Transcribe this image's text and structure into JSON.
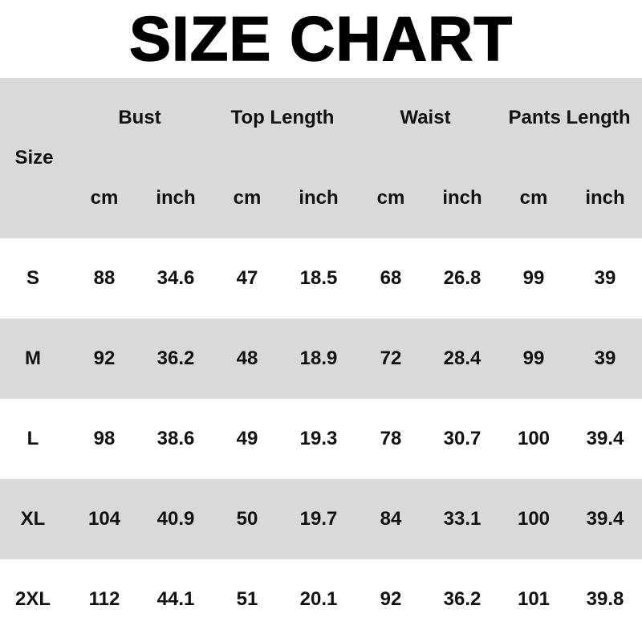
{
  "title": "SIZE CHART",
  "header": {
    "size_label": "Size",
    "groups": [
      "Bust",
      "Top Length",
      "Waist",
      "Pants Length"
    ],
    "units": [
      "cm",
      "inch",
      "cm",
      "inch",
      "cm",
      "inch",
      "cm",
      "inch"
    ]
  },
  "rows": [
    {
      "size": "S",
      "values": [
        "88",
        "34.6",
        "47",
        "18.5",
        "68",
        "26.8",
        "99",
        "39"
      ]
    },
    {
      "size": "M",
      "values": [
        "92",
        "36.2",
        "48",
        "18.9",
        "72",
        "28.4",
        "99",
        "39"
      ]
    },
    {
      "size": "L",
      "values": [
        "98",
        "38.6",
        "49",
        "19.3",
        "78",
        "30.7",
        "100",
        "39.4"
      ]
    },
    {
      "size": "XL",
      "values": [
        "104",
        "40.9",
        "50",
        "19.7",
        "84",
        "33.1",
        "100",
        "39.4"
      ]
    },
    {
      "size": "2XL",
      "values": [
        "112",
        "44.1",
        "51",
        "20.1",
        "92",
        "36.2",
        "101",
        "39.8"
      ]
    }
  ],
  "colors": {
    "stripe": "#d9d9d9",
    "text": "#111111"
  }
}
